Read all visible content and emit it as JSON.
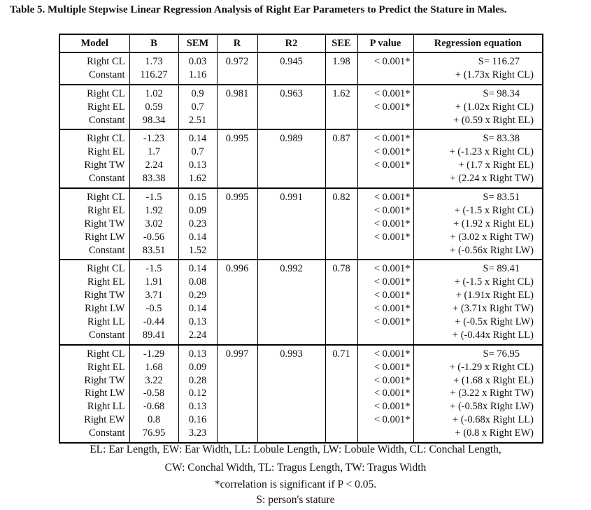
{
  "caption": "Table 5. Multiple Stepwise Linear Regression Analysis of Right Ear Parameters to Predict the Stature in Males.",
  "headers": {
    "model": "Model",
    "b": "B",
    "sem": "SEM",
    "r": "R",
    "r2": "R2",
    "see": "SEE",
    "p": "P value",
    "eq": "Regression equation"
  },
  "models": [
    {
      "rows": [
        {
          "model": "Right CL",
          "b": "1.73",
          "sem": "0.03"
        },
        {
          "model": "Constant",
          "b": "116.27",
          "sem": "1.16"
        }
      ],
      "r": "0.972",
      "r2": "0.945",
      "see": "1.98",
      "p": [
        "< 0.001*"
      ],
      "eq": [
        "S= 116.27",
        "+ (1.73x Right CL)"
      ]
    },
    {
      "rows": [
        {
          "model": "Right CL",
          "b": "1.02",
          "sem": "0.9"
        },
        {
          "model": "Right EL",
          "b": "0.59",
          "sem": "0.7"
        },
        {
          "model": "Constant",
          "b": "98.34",
          "sem": "2.51"
        }
      ],
      "r": "0.981",
      "r2": "0.963",
      "see": "1.62",
      "p": [
        "< 0.001*",
        "< 0.001*"
      ],
      "eq": [
        "S= 98.34",
        "+ (1.02x Right CL)",
        "+ (0.59 x Right EL)"
      ]
    },
    {
      "rows": [
        {
          "model": "Right CL",
          "b": "-1.23",
          "sem": "0.14"
        },
        {
          "model": "Right EL",
          "b": "1.7",
          "sem": "0.7"
        },
        {
          "model": "Right TW",
          "b": "2.24",
          "sem": "0.13"
        },
        {
          "model": "Constant",
          "b": "83.38",
          "sem": "1.62"
        }
      ],
      "r": "0.995",
      "r2": "0.989",
      "see": "0.87",
      "p": [
        "< 0.001*",
        "< 0.001*",
        "< 0.001*"
      ],
      "eq": [
        "S= 83.38",
        "+ (-1.23 x Right CL)",
        "+ (1.7 x Right EL)",
        "+ (2.24 x Right TW)"
      ]
    },
    {
      "rows": [
        {
          "model": "Right CL",
          "b": "-1.5",
          "sem": "0.15"
        },
        {
          "model": "Right EL",
          "b": "1.92",
          "sem": "0.09"
        },
        {
          "model": "Right TW",
          "b": "3.02",
          "sem": "0.23"
        },
        {
          "model": "Right LW",
          "b": "-0.56",
          "sem": "0.14"
        },
        {
          "model": "Constant",
          "b": "83.51",
          "sem": "1.52"
        }
      ],
      "r": "0.995",
      "r2": "0.991",
      "see": "0.82",
      "p": [
        "< 0.001*",
        "< 0.001*",
        "< 0.001*",
        "< 0.001*"
      ],
      "eq": [
        "S= 83.51",
        "+ (-1.5 x Right CL)",
        "+ (1.92 x Right EL)",
        "+ (3.02 x Right TW)",
        "+ (-0.56x Right LW)"
      ]
    },
    {
      "rows": [
        {
          "model": "Right CL",
          "b": "-1.5",
          "sem": "0.14"
        },
        {
          "model": "Right EL",
          "b": "1.91",
          "sem": "0.08"
        },
        {
          "model": "Right TW",
          "b": "3.71",
          "sem": "0.29"
        },
        {
          "model": "Right LW",
          "b": "-0.5",
          "sem": "0.14"
        },
        {
          "model": "Right LL",
          "b": "-0.44",
          "sem": "0.13"
        },
        {
          "model": "Constant",
          "b": "89.41",
          "sem": "2.24"
        }
      ],
      "r": "0.996",
      "r2": "0.992",
      "see": "0.78",
      "p": [
        "< 0.001*",
        "< 0.001*",
        "< 0.001*",
        "< 0.001*",
        "< 0.001*"
      ],
      "eq": [
        "S= 89.41",
        "+ (-1.5 x Right CL)",
        "+ (1.91x Right EL)",
        "+ (3.71x Right TW)",
        "+ (-0.5x Right LW)",
        "+ (-0.44x Right LL)"
      ]
    },
    {
      "rows": [
        {
          "model": "Right CL",
          "b": "-1.29",
          "sem": "0.13"
        },
        {
          "model": "Right EL",
          "b": "1.68",
          "sem": "0.09"
        },
        {
          "model": "Right TW",
          "b": "3.22",
          "sem": "0.28"
        },
        {
          "model": "Right LW",
          "b": "-0.58",
          "sem": "0.12"
        },
        {
          "model": "Right LL",
          "b": "-0.68",
          "sem": "0.13"
        },
        {
          "model": "Right EW",
          "b": "0.8",
          "sem": "0.16"
        },
        {
          "model": "Constant",
          "b": "76.95",
          "sem": "3.23"
        }
      ],
      "r": "0.997",
      "r2": "0.993",
      "see": "0.71",
      "p": [
        "< 0.001*",
        "< 0.001*",
        "< 0.001*",
        "< 0.001*",
        "< 0.001*",
        "< 0.001*"
      ],
      "eq": [
        "S= 76.95",
        "+ (-1.29 x Right CL)",
        "+ (1.68 x Right EL)",
        "+ (3.22 x Right TW)",
        "+ (-0.58x Right LW)",
        "+ (-0.68x Right LL)",
        "+ (0.8 x Right EW)"
      ]
    }
  ],
  "footnotes": {
    "abbrev_1": "EL: Ear Length, EW: Ear Width, LL: Lobule Length, LW: Lobule Width, CL: Conchal Length,",
    "abbrev_2": "CW: Conchal Width, TL: Tragus Length, TW: Tragus Width",
    "significance": "*correlation is significant if  P < 0.05.",
    "stature": "S: person's stature"
  }
}
